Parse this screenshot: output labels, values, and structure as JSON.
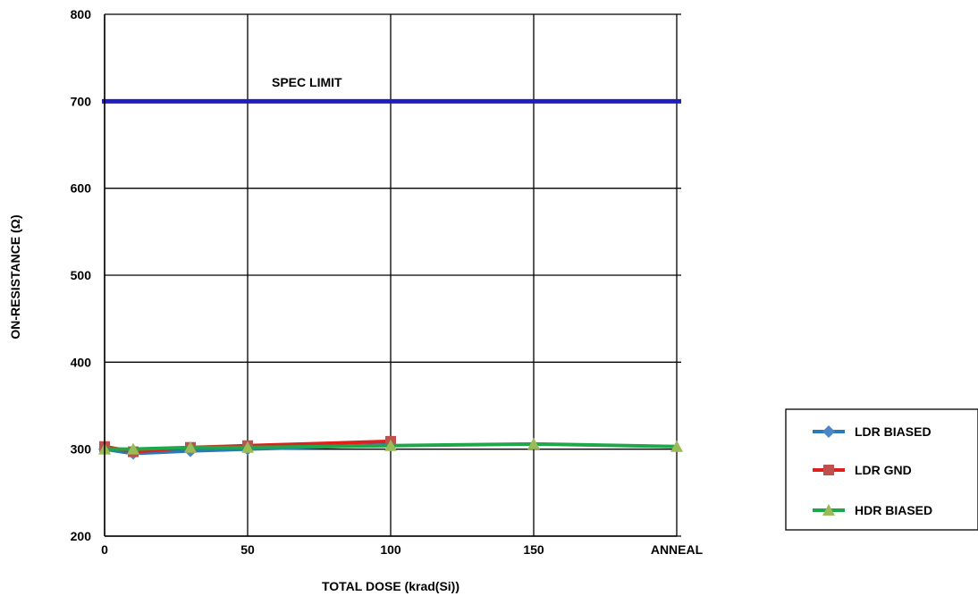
{
  "chart_data": {
    "type": "line",
    "title": "",
    "xlabel": "TOTAL DOSE (krad(Si))",
    "ylabel": "ON-RESISTANCE (Ω)",
    "ylim": [
      200,
      800
    ],
    "yticks": [
      200,
      300,
      400,
      500,
      600,
      700,
      800
    ],
    "x_ticks": [
      "0",
      "50",
      "100",
      "150",
      "ANNEAL"
    ],
    "x_tick_values": [
      0,
      50,
      100,
      150,
      200
    ],
    "grid": true,
    "legend_position": "right",
    "spec_limit": {
      "label": "SPEC LIMIT",
      "value": 700,
      "color": "#1f1fbf"
    },
    "series": [
      {
        "name": "LDR BIASED",
        "color": "#2a7ab8",
        "marker_color": "#4a86c8",
        "marker": "diamond",
        "x": [
          0,
          10,
          30,
          50,
          100
        ],
        "y": [
          300,
          295,
          298,
          300,
          305
        ]
      },
      {
        "name": "LDR GND",
        "color": "#e0201c",
        "marker_color": "#c0504d",
        "marker": "square",
        "x": [
          0,
          10,
          30,
          50,
          100
        ],
        "y": [
          303,
          297,
          302,
          304,
          309
        ]
      },
      {
        "name": "HDR BIASED",
        "color": "#1ea84a",
        "marker_color": "#9bbb59",
        "marker": "triangle",
        "x": [
          0,
          10,
          30,
          50,
          100,
          150,
          200
        ],
        "y": [
          300,
          300,
          302,
          302,
          304,
          306,
          303
        ]
      }
    ]
  }
}
